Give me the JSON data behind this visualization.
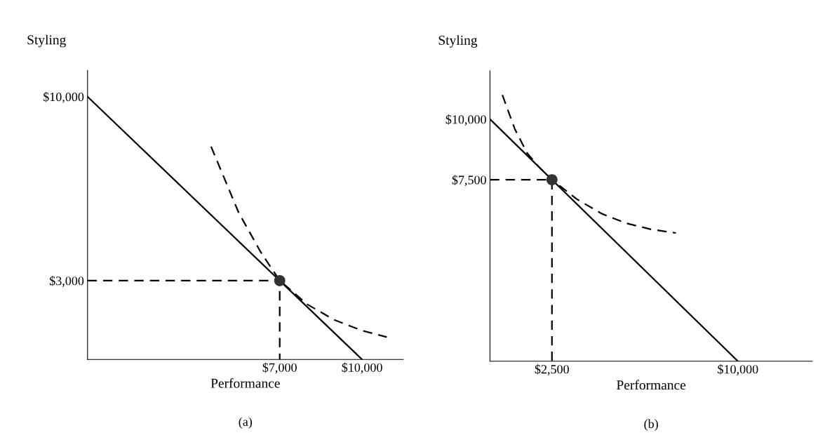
{
  "chart_data": [
    {
      "type": "line",
      "title": "(a)",
      "xlabel": "Performance",
      "ylabel": "Styling",
      "xlim": [
        0,
        11500
      ],
      "ylim": [
        0,
        11000
      ],
      "xticks": [
        {
          "value": 7000,
          "label": "$7,000"
        },
        {
          "value": 10000,
          "label": "$10,000"
        }
      ],
      "yticks": [
        {
          "value": 3000,
          "label": "$3,000"
        },
        {
          "value": 10000,
          "label": "$10,000"
        }
      ],
      "grid": false,
      "series": [
        {
          "color": "#000000",
          "line_style": "solid",
          "x": [
            0,
            10000
          ],
          "values": [
            10000,
            0
          ]
        },
        {
          "color": "#000000",
          "line_style": "dashed",
          "x": [
            4500,
            5500,
            6300,
            7000,
            8000,
            9000,
            10000,
            10900
          ],
          "values": [
            8100,
            5600,
            4100,
            3000,
            2100,
            1500,
            1100,
            850
          ]
        },
        {
          "color": "#000000",
          "line_style": "dashed",
          "x": [
            0,
            7000,
            7000
          ],
          "values": [
            3000,
            3000,
            0
          ]
        },
        {
          "type": "scatter",
          "color": "#333333",
          "marker": "circle",
          "x": [
            7000
          ],
          "values": [
            3000
          ]
        }
      ]
    },
    {
      "type": "line",
      "title": "(b)",
      "xlabel": "Performance",
      "ylabel": "Styling",
      "xlim": [
        0,
        13000
      ],
      "ylim": [
        0,
        12000
      ],
      "xticks": [
        {
          "value": 2500,
          "label": "$2,500"
        },
        {
          "value": 10000,
          "label": "$10,000"
        }
      ],
      "yticks": [
        {
          "value": 7500,
          "label": "$7,500"
        },
        {
          "value": 10000,
          "label": "$10,000"
        }
      ],
      "grid": false,
      "series": [
        {
          "color": "#000000",
          "line_style": "solid",
          "x": [
            0,
            10000
          ],
          "values": [
            10000,
            0
          ]
        },
        {
          "color": "#000000",
          "line_style": "dashed",
          "x": [
            500,
            1000,
            1500,
            2000,
            2500,
            3500,
            4500,
            5500,
            6500,
            7500
          ],
          "values": [
            11000,
            9600,
            8600,
            8000,
            7500,
            6700,
            6100,
            5700,
            5450,
            5300
          ]
        },
        {
          "color": "#000000",
          "line_style": "dashed",
          "x": [
            0,
            2500,
            2500
          ],
          "values": [
            7500,
            7500,
            0
          ]
        },
        {
          "type": "scatter",
          "color": "#333333",
          "marker": "circle",
          "x": [
            2500
          ],
          "values": [
            7500
          ]
        }
      ]
    }
  ]
}
